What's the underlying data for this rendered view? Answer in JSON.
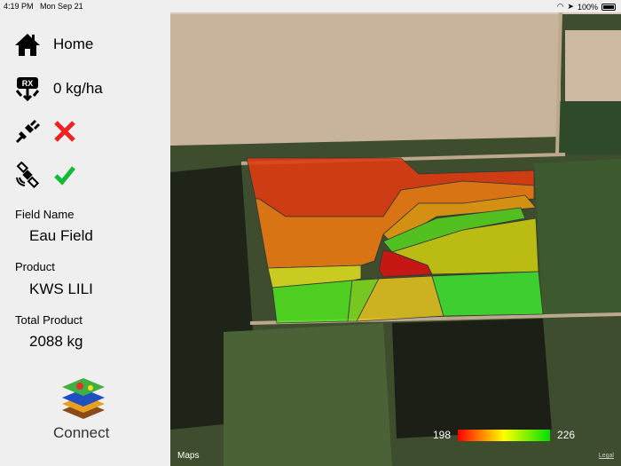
{
  "status_bar": {
    "time": "4:19 PM",
    "date": "Mon Sep 21",
    "battery": "100%"
  },
  "sidebar": {
    "home_label": "Home",
    "rate": "0 kg/ha",
    "connection_status": "disconnected",
    "gps_status": "ok",
    "field_name_label": "Field Name",
    "field_name": "Eau Field",
    "product_label": "Product",
    "product": "KWS LILI",
    "total_product_label": "Total Product",
    "total_product": "2088 kg",
    "logo_text": "Connect",
    "rx_badge": "RX"
  },
  "map": {
    "legend_min": "198",
    "legend_max": "226",
    "attribution": "Maps",
    "legal": "Legal",
    "colors": {
      "low": "#ff0000",
      "mid": "#ffff00",
      "high": "#00e000"
    }
  }
}
